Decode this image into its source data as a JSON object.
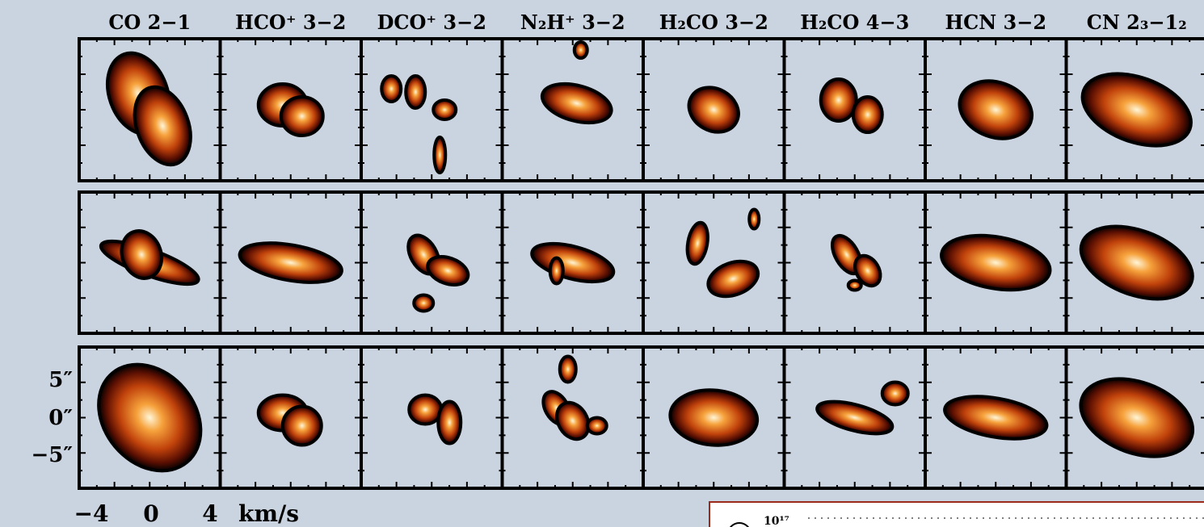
{
  "columns": [
    "CO 2−1",
    "HCO⁺ 3−2",
    "DCO⁺ 3−2",
    "N₂H⁺ 3−2",
    "H₂CO 3−2",
    "H₂CO 4−3",
    "HCN 3−2",
    "CN 2₃−1₂"
  ],
  "y_axis": {
    "labels": [
      "5″",
      "0″",
      "−5″"
    ]
  },
  "x_axis": {
    "labels": [
      "−4",
      "0",
      "4"
    ],
    "unit": "km/s"
  },
  "inset": {
    "tick_label": "10¹⁷"
  }
}
